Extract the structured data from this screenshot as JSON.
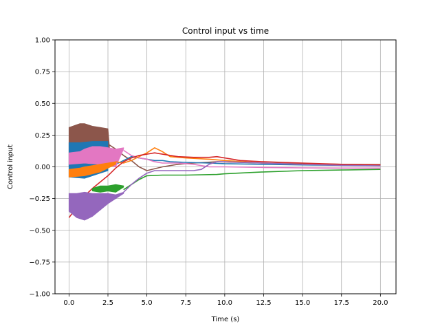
{
  "chart_data": {
    "type": "line",
    "title": "Control input vs time",
    "xlabel": "Time (s)",
    "ylabel": "Control input",
    "xlim": [
      -0.9,
      21.0
    ],
    "ylim": [
      -1.0,
      1.0
    ],
    "xticks": [
      0.0,
      2.5,
      5.0,
      7.5,
      10.0,
      12.5,
      15.0,
      17.5,
      20.0
    ],
    "xtick_labels": [
      "0.0",
      "2.5",
      "5.0",
      "7.5",
      "10.0",
      "12.5",
      "15.0",
      "17.5",
      "20.0"
    ],
    "yticks": [
      -1.0,
      -0.75,
      -0.5,
      -0.25,
      0.0,
      0.25,
      0.5,
      0.75,
      1.0
    ],
    "ytick_labels": [
      "−1.00",
      "−0.75",
      "−0.50",
      "−0.25",
      "0.00",
      "0.25",
      "0.50",
      "0.75",
      "1.00"
    ],
    "grid": true,
    "legend": "none",
    "series": [
      {
        "color": "#8c564b",
        "band_upper": [
          [
            0.0,
            0.31
          ],
          [
            0.7,
            0.34
          ],
          [
            1.0,
            0.34
          ],
          [
            1.5,
            0.32
          ],
          [
            2.0,
            0.31
          ],
          [
            2.5,
            0.3
          ],
          [
            2.6,
            0.15
          ]
        ],
        "band_lower": [
          [
            0.0,
            0.0
          ],
          [
            1.0,
            0.02
          ],
          [
            2.0,
            0.03
          ],
          [
            2.6,
            0.1
          ]
        ],
        "line": [
          [
            2.5,
            0.18
          ],
          [
            3.0,
            0.14
          ],
          [
            3.5,
            0.09
          ],
          [
            4.0,
            0.05
          ],
          [
            4.5,
            0.0
          ],
          [
            5.0,
            -0.03
          ],
          [
            6.0,
            0.0
          ],
          [
            7.0,
            0.02
          ],
          [
            8.0,
            0.03
          ],
          [
            9.5,
            0.04
          ],
          [
            12.5,
            0.03
          ],
          [
            15.0,
            0.025
          ],
          [
            17.5,
            0.02
          ],
          [
            20.0,
            0.018
          ]
        ]
      },
      {
        "color": "#1f77b4",
        "band_upper": [
          [
            0.0,
            0.19
          ],
          [
            0.7,
            0.19
          ],
          [
            1.5,
            0.2
          ],
          [
            2.0,
            0.2
          ],
          [
            2.5,
            0.2
          ]
        ],
        "band_lower": [
          [
            0.0,
            -0.08
          ],
          [
            1.0,
            -0.09
          ],
          [
            2.0,
            -0.05
          ],
          [
            2.5,
            -0.03
          ]
        ],
        "line": [
          [
            2.5,
            0.05
          ],
          [
            3.0,
            0.02
          ],
          [
            3.5,
            0.05
          ],
          [
            4.0,
            0.08
          ],
          [
            4.5,
            0.07
          ],
          [
            5.0,
            0.06
          ],
          [
            5.5,
            0.05
          ],
          [
            6.0,
            0.05
          ],
          [
            6.5,
            0.04
          ],
          [
            7.5,
            0.035
          ],
          [
            9.0,
            0.03
          ],
          [
            10.0,
            0.025
          ],
          [
            12.5,
            0.02
          ],
          [
            15.0,
            0.015
          ],
          [
            17.5,
            0.012
          ],
          [
            20.0,
            0.01
          ]
        ]
      },
      {
        "color": "#e377c2",
        "band_upper": [
          [
            0.0,
            0.11
          ],
          [
            0.7,
            0.12
          ],
          [
            1.0,
            0.14
          ],
          [
            1.5,
            0.16
          ],
          [
            2.0,
            0.16
          ],
          [
            2.5,
            0.15
          ],
          [
            3.0,
            0.14
          ],
          [
            3.5,
            0.15
          ]
        ],
        "band_lower": [
          [
            0.0,
            0.02
          ],
          [
            1.0,
            0.03
          ],
          [
            2.0,
            0.02
          ],
          [
            3.0,
            0.0
          ],
          [
            3.5,
            0.14
          ]
        ],
        "line": [
          [
            3.5,
            0.13
          ],
          [
            4.0,
            0.09
          ],
          [
            4.5,
            0.07
          ],
          [
            5.0,
            0.06
          ],
          [
            5.5,
            0.04
          ],
          [
            6.0,
            0.03
          ],
          [
            7.0,
            0.03
          ],
          [
            8.0,
            0.02
          ],
          [
            9.0,
            0.0
          ],
          [
            10.0,
            0.0
          ],
          [
            12.5,
            -0.005
          ],
          [
            15.0,
            -0.008
          ],
          [
            17.5,
            -0.01
          ],
          [
            20.0,
            -0.01
          ]
        ]
      },
      {
        "color": "#ff7f0e",
        "band_upper": [
          [
            0.0,
            -0.02
          ],
          [
            0.7,
            -0.01
          ],
          [
            1.0,
            0.0
          ],
          [
            1.5,
            0.01
          ],
          [
            2.0,
            0.02
          ],
          [
            2.5,
            0.03
          ],
          [
            3.0,
            0.04
          ]
        ],
        "band_lower": [
          [
            0.0,
            -0.08
          ],
          [
            1.0,
            -0.07
          ],
          [
            2.0,
            -0.04
          ],
          [
            3.0,
            0.02
          ]
        ],
        "line": [
          [
            3.0,
            0.04
          ],
          [
            3.5,
            0.03
          ],
          [
            4.0,
            0.05
          ],
          [
            4.5,
            0.08
          ],
          [
            5.0,
            0.11
          ],
          [
            5.5,
            0.15
          ],
          [
            6.0,
            0.12
          ],
          [
            6.5,
            0.08
          ],
          [
            7.5,
            0.07
          ],
          [
            9.0,
            0.06
          ],
          [
            10.0,
            0.05
          ],
          [
            12.5,
            0.03
          ],
          [
            15.0,
            0.02
          ],
          [
            17.5,
            0.015
          ],
          [
            20.0,
            0.012
          ]
        ]
      },
      {
        "color": "#d62728",
        "band_upper": [],
        "band_lower": [],
        "line": [
          [
            0.0,
            -0.4
          ],
          [
            0.3,
            -0.35
          ],
          [
            0.7,
            -0.29
          ],
          [
            1.0,
            -0.23
          ],
          [
            1.5,
            -0.17
          ],
          [
            2.0,
            -0.12
          ],
          [
            2.5,
            -0.07
          ],
          [
            3.0,
            -0.01
          ],
          [
            3.5,
            0.04
          ],
          [
            4.0,
            0.07
          ],
          [
            4.5,
            0.09
          ],
          [
            5.0,
            0.1
          ],
          [
            5.5,
            0.11
          ],
          [
            6.0,
            0.1
          ],
          [
            7.0,
            0.08
          ],
          [
            8.0,
            0.075
          ],
          [
            9.0,
            0.075
          ],
          [
            9.5,
            0.08
          ],
          [
            10.0,
            0.07
          ],
          [
            11.0,
            0.05
          ],
          [
            12.5,
            0.04
          ],
          [
            15.0,
            0.03
          ],
          [
            17.5,
            0.02
          ],
          [
            20.0,
            0.015
          ]
        ]
      },
      {
        "color": "#2ca02c",
        "band_upper": [
          [
            1.5,
            -0.17
          ],
          [
            2.0,
            -0.15
          ],
          [
            2.5,
            -0.15
          ],
          [
            3.0,
            -0.14
          ],
          [
            3.5,
            -0.15
          ]
        ],
        "band_lower": [
          [
            1.5,
            -0.19
          ],
          [
            2.0,
            -0.2
          ],
          [
            2.5,
            -0.19
          ],
          [
            3.0,
            -0.2
          ],
          [
            3.5,
            -0.16
          ]
        ],
        "line": [
          [
            3.5,
            -0.18
          ],
          [
            4.0,
            -0.14
          ],
          [
            4.5,
            -0.1
          ],
          [
            5.0,
            -0.07
          ],
          [
            6.0,
            -0.065
          ],
          [
            7.5,
            -0.065
          ],
          [
            9.5,
            -0.06
          ],
          [
            10.0,
            -0.055
          ],
          [
            12.5,
            -0.04
          ],
          [
            15.0,
            -0.03
          ],
          [
            17.5,
            -0.025
          ],
          [
            20.0,
            -0.02
          ]
        ]
      },
      {
        "color": "#9467bd",
        "band_upper": [
          [
            0.0,
            -0.21
          ],
          [
            0.5,
            -0.21
          ],
          [
            1.0,
            -0.2
          ],
          [
            1.5,
            -0.21
          ],
          [
            2.0,
            -0.21
          ],
          [
            2.5,
            -0.21
          ],
          [
            3.0,
            -0.22
          ],
          [
            3.5,
            -0.2
          ]
        ],
        "band_lower": [
          [
            0.0,
            -0.35
          ],
          [
            0.5,
            -0.4
          ],
          [
            1.0,
            -0.42
          ],
          [
            1.5,
            -0.39
          ],
          [
            2.0,
            -0.34
          ],
          [
            2.5,
            -0.29
          ],
          [
            3.0,
            -0.25
          ],
          [
            3.5,
            -0.21
          ]
        ],
        "line": [
          [
            3.5,
            -0.2
          ],
          [
            4.0,
            -0.14
          ],
          [
            4.5,
            -0.09
          ],
          [
            5.0,
            -0.05
          ],
          [
            5.5,
            -0.03
          ],
          [
            6.0,
            -0.03
          ],
          [
            7.0,
            -0.03
          ],
          [
            8.0,
            -0.03
          ],
          [
            8.5,
            -0.02
          ],
          [
            9.0,
            0.02
          ],
          [
            9.5,
            0.04
          ],
          [
            10.0,
            0.04
          ],
          [
            12.5,
            0.03
          ],
          [
            15.0,
            0.02
          ],
          [
            17.5,
            0.012
          ],
          [
            20.0,
            0.008
          ]
        ]
      }
    ]
  }
}
